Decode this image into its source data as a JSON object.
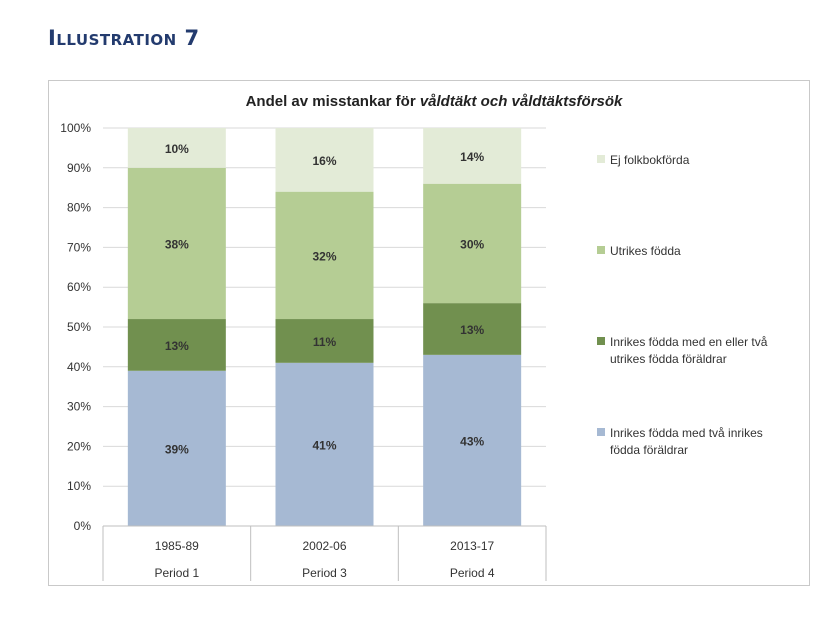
{
  "heading": "Illustration 7",
  "chart_data": {
    "type": "bar",
    "stacked": true,
    "title_prefix": "Andel av misstankar för ",
    "title_emphasis": "våldtäkt och våldtäktsförsök",
    "categories": [
      "1985-89",
      "2002-06",
      "2013-17"
    ],
    "category_groups": [
      "Period 1",
      "Period 3",
      "Period 4"
    ],
    "ylim": [
      0,
      100
    ],
    "yticks": [
      "0%",
      "10%",
      "20%",
      "30%",
      "40%",
      "50%",
      "60%",
      "70%",
      "80%",
      "90%",
      "100%"
    ],
    "grid": true,
    "legend_position": "right",
    "series": [
      {
        "name": "Inrikes födda med två inrikes födda föräldrar",
        "legend_lines": [
          "Inrikes födda med två inrikes",
          "födda föräldrar"
        ],
        "values": [
          39,
          41,
          43
        ],
        "labels": [
          "39%",
          "41%",
          "43%"
        ],
        "color": "#a6b9d3"
      },
      {
        "name": "Inrikes födda med en eller två utrikes födda föräldrar",
        "legend_lines": [
          "Inrikes födda med en eller två",
          "utrikes födda föräldrar"
        ],
        "values": [
          13,
          11,
          13
        ],
        "labels": [
          "13%",
          "11%",
          "13%"
        ],
        "color": "#71904f"
      },
      {
        "name": "Utrikes födda",
        "legend_lines": [
          "Utrikes födda"
        ],
        "values": [
          38,
          32,
          30
        ],
        "labels": [
          "38%",
          "32%",
          "30%"
        ],
        "color": "#b5cd94"
      },
      {
        "name": "Ej folkbokförda",
        "legend_lines": [
          "Ej folkbokförda"
        ],
        "values": [
          10,
          16,
          14
        ],
        "labels": [
          "10%",
          "16%",
          "14%"
        ],
        "color": "#e3ebd7"
      }
    ]
  }
}
